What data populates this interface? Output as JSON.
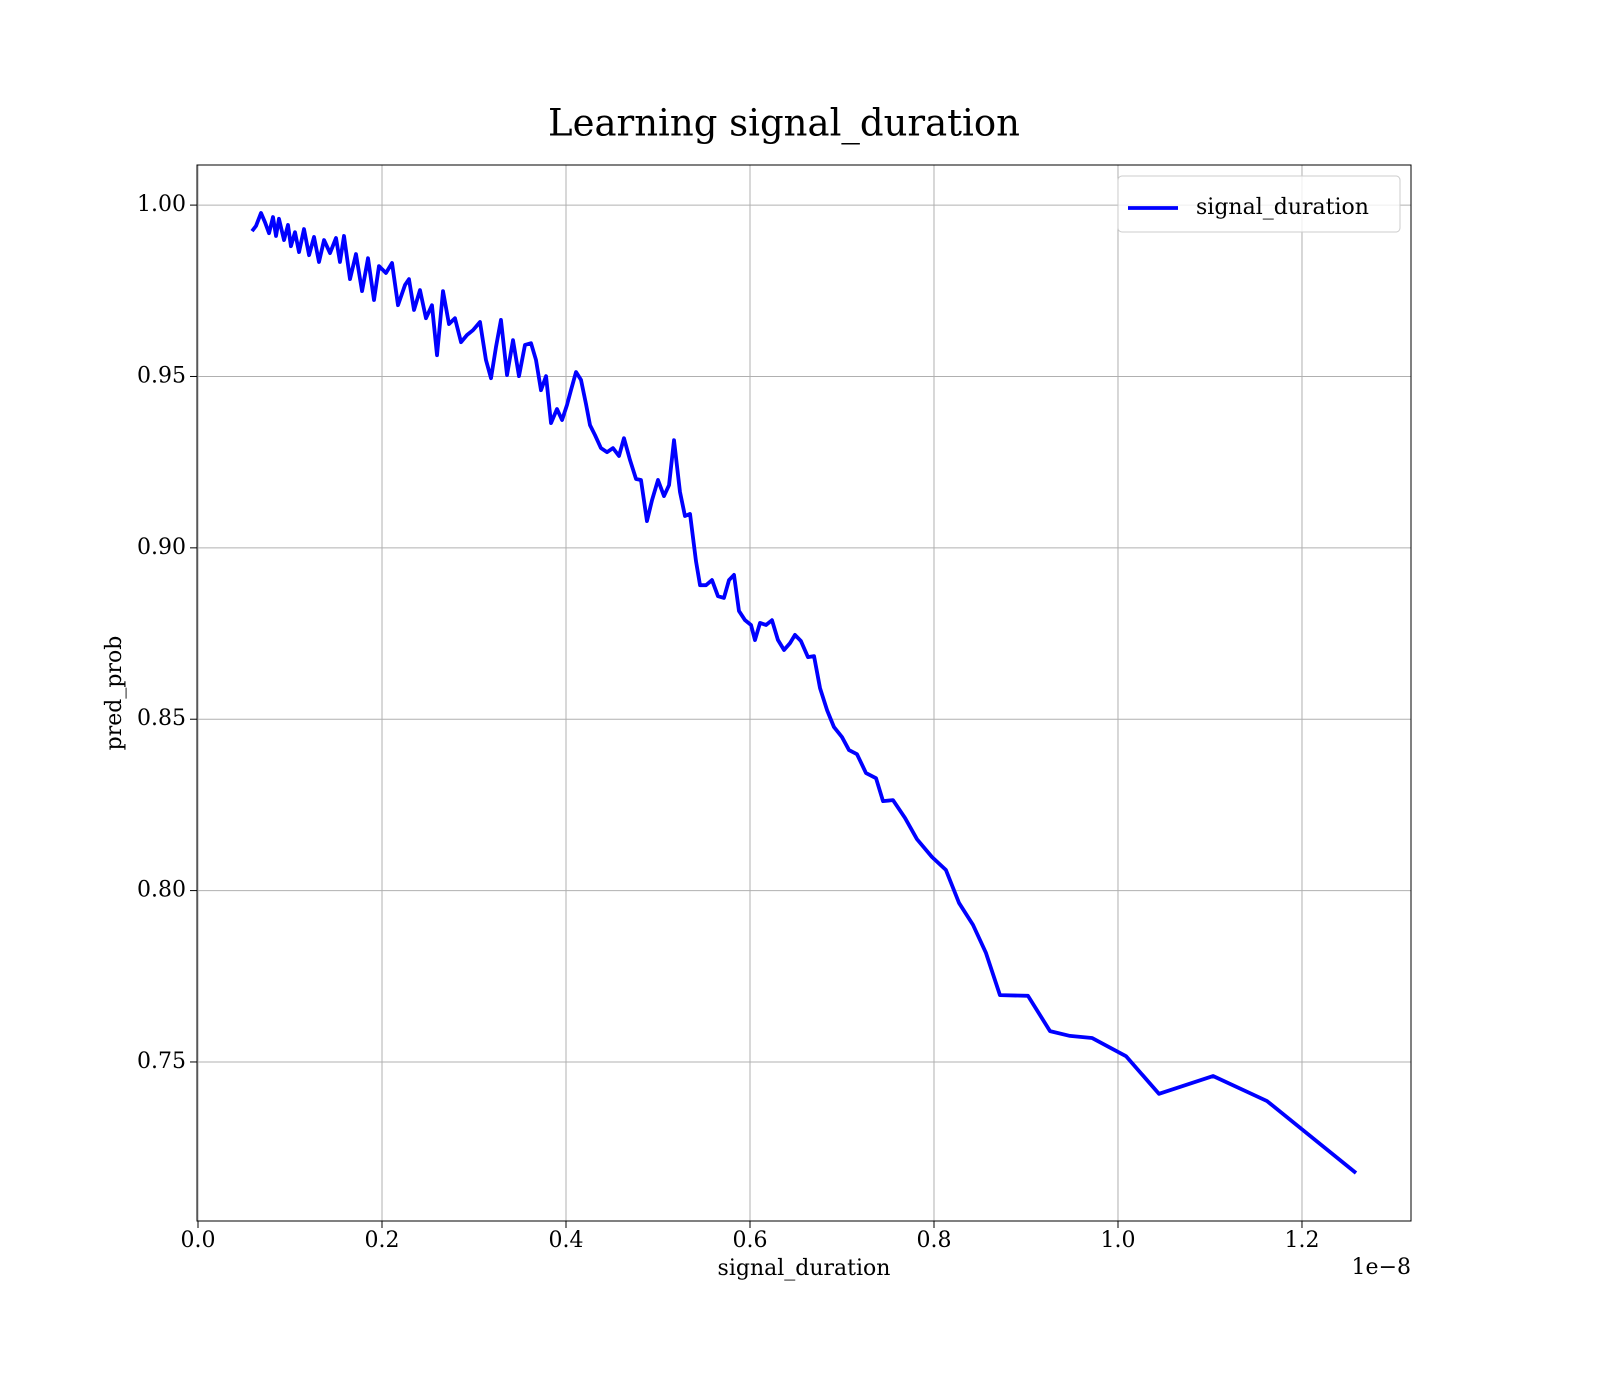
{
  "chart_data": {
    "type": "line",
    "title": "Learning signal_duration",
    "x_label": "signal_duration",
    "y_label": "pred_prob",
    "x_offset_label": "1e−8",
    "grid": true,
    "legend": "upper right",
    "xlim": [
      -0.0011,
      1.3185
    ],
    "ylim": [
      0.7036,
      1.0117
    ],
    "xticks": [
      {
        "value": 0,
        "label": "0.0"
      },
      0.2,
      0.4,
      0.6,
      0.8,
      {
        "value": 1,
        "label": "1.0"
      },
      1.2
    ],
    "yticks": [
      0.75,
      {
        "value": 0.8,
        "label": "0.80"
      },
      0.85,
      {
        "value": 0.9,
        "label": "0.90"
      },
      0.95,
      {
        "value": 1,
        "label": "1.00"
      }
    ],
    "x": [
      0.0587,
      0.063,
      0.0685,
      0.0728,
      0.0772,
      0.0815,
      0.0848,
      0.088,
      0.0935,
      0.0978,
      0.101,
      0.1054,
      0.1098,
      0.1152,
      0.1207,
      0.1261,
      0.1315,
      0.137,
      0.1435,
      0.15,
      0.1543,
      0.1587,
      0.1652,
      0.1717,
      0.1783,
      0.1848,
      0.1913,
      0.1967,
      0.2043,
      0.2109,
      0.2174,
      0.225,
      0.2293,
      0.2348,
      0.2413,
      0.2478,
      0.2543,
      0.2598,
      0.2663,
      0.2728,
      0.2793,
      0.2859,
      0.2924,
      0.2989,
      0.3065,
      0.313,
      0.3185,
      0.3239,
      0.3293,
      0.3359,
      0.3424,
      0.3489,
      0.3554,
      0.362,
      0.3674,
      0.3728,
      0.3783,
      0.3837,
      0.3902,
      0.3957,
      0.4011,
      0.4054,
      0.4109,
      0.4163,
      0.4217,
      0.4261,
      0.4315,
      0.438,
      0.4446,
      0.4511,
      0.4576,
      0.463,
      0.4696,
      0.4761,
      0.4815,
      0.488,
      0.4935,
      0.5,
      0.5065,
      0.512,
      0.5174,
      0.5239,
      0.5293,
      0.5348,
      0.5413,
      0.5457,
      0.5522,
      0.5587,
      0.5652,
      0.5717,
      0.5772,
      0.5826,
      0.588,
      0.5946,
      0.6011,
      0.6054,
      0.6109,
      0.6174,
      0.6239,
      0.6304,
      0.637,
      0.6435,
      0.6489,
      0.6554,
      0.663,
      0.6696,
      0.6761,
      0.6837,
      0.6913,
      0.7,
      0.7076,
      0.7163,
      0.7261,
      0.737,
      0.7446,
      0.7554,
      0.7685,
      0.7815,
      0.7978,
      0.813,
      0.8272,
      0.8424,
      0.8565,
      0.8717,
      0.9022,
      0.9261,
      0.9478,
      0.9717,
      1.0087,
      1.0446,
      1.1033,
      1.162,
      1.2587
    ],
    "series": [
      {
        "name": "signal_duration",
        "color": "#0000ff",
        "values": [
          0.9924,
          0.9939,
          0.9977,
          0.995,
          0.9918,
          0.9965,
          0.991,
          0.996,
          0.9898,
          0.9942,
          0.988,
          0.9921,
          0.9863,
          0.993,
          0.9854,
          0.9907,
          0.9834,
          0.9898,
          0.986,
          0.9904,
          0.9834,
          0.991,
          0.9784,
          0.9857,
          0.9749,
          0.9845,
          0.9723,
          0.9822,
          0.9802,
          0.9831,
          0.9708,
          0.9767,
          0.9784,
          0.9694,
          0.9752,
          0.967,
          0.9708,
          0.9562,
          0.9749,
          0.9653,
          0.967,
          0.96,
          0.9621,
          0.9635,
          0.9659,
          0.9548,
          0.9495,
          0.9586,
          0.9665,
          0.9504,
          0.9606,
          0.9501,
          0.9592,
          0.9597,
          0.9548,
          0.946,
          0.9501,
          0.9364,
          0.9405,
          0.9373,
          0.9417,
          0.946,
          0.9513,
          0.949,
          0.942,
          0.9358,
          0.9329,
          0.9291,
          0.9279,
          0.9291,
          0.9268,
          0.932,
          0.9256,
          0.9201,
          0.9198,
          0.9078,
          0.9139,
          0.9198,
          0.9151,
          0.9183,
          0.9314,
          0.9163,
          0.9093,
          0.9099,
          0.8961,
          0.8891,
          0.8891,
          0.8906,
          0.8859,
          0.8854,
          0.8906,
          0.8921,
          0.8816,
          0.8789,
          0.8775,
          0.8731,
          0.8781,
          0.8775,
          0.8789,
          0.8731,
          0.8702,
          0.8722,
          0.8746,
          0.8728,
          0.8681,
          0.8684,
          0.8591,
          0.8527,
          0.8477,
          0.8448,
          0.841,
          0.8398,
          0.8343,
          0.8328,
          0.8261,
          0.8264,
          0.8212,
          0.815,
          0.8098,
          0.806,
          0.7964,
          0.79,
          0.7818,
          0.7695,
          0.7693,
          0.759,
          0.7576,
          0.757,
          0.7517,
          0.7407,
          0.7459,
          0.7386,
          0.7176
        ]
      }
    ]
  }
}
